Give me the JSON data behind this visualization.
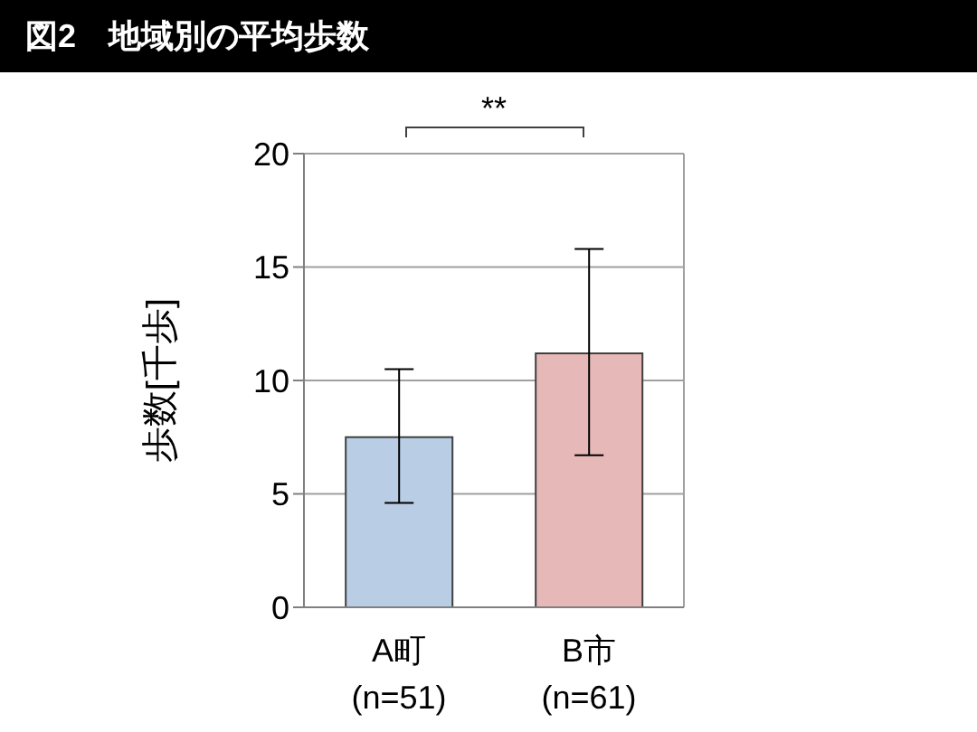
{
  "chart_data": {
    "type": "bar",
    "title": "図2　地域別の平均歩数",
    "ylabel": "歩数[千歩]",
    "categories": [
      "A町\n(n=51)",
      "B市\n(n=61)"
    ],
    "values": [
      7.5,
      11.2
    ],
    "colors": [
      "#b9cde5",
      "#e6b9b8"
    ],
    "errors": [
      [
        4.6,
        10.5
      ],
      [
        6.7,
        15.8
      ]
    ],
    "ylim": [
      0,
      20
    ],
    "yticks": [
      0,
      5,
      10,
      15,
      20
    ],
    "grid": "y",
    "annotations": [
      "**"
    ]
  }
}
